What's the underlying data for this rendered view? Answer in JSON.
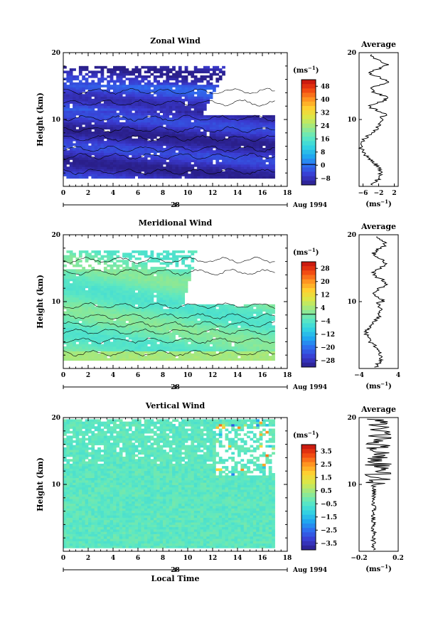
{
  "chart_data": [
    {
      "type": "heatmap",
      "title": "Zonal Wind",
      "ylabel": "Height (km)",
      "ylim": [
        0,
        20
      ],
      "yticks": [
        "10",
        "20"
      ],
      "xlim": [
        0,
        18
      ],
      "xticks": [
        "0",
        "2",
        "4",
        "6",
        "8",
        "10",
        "12",
        "14",
        "16",
        "18"
      ],
      "date_label": "28",
      "date_suffix": "Aug 1994",
      "colorbar": {
        "unit": "(ms",
        "unit_exp": "−1",
        "unit_close": ")",
        "ticks": [
          "48",
          "40",
          "32",
          "24",
          "16",
          "8",
          "0",
          "−8"
        ],
        "range": [
          -12,
          52
        ]
      },
      "data_extent": {
        "x": [
          0,
          17
        ],
        "y": [
          1.2,
          18.8
        ]
      },
      "average": {
        "title": "Average",
        "xticks": [
          "−6",
          "−2",
          "2"
        ],
        "xlabel": "(ms",
        "xlabel_exp": "−1",
        "xlabel_close": ")",
        "xlim": [
          -7,
          3
        ],
        "yticks": [
          "10",
          "20"
        ]
      },
      "legend": "none",
      "grid": false
    },
    {
      "type": "heatmap",
      "title": "Meridional Wind",
      "ylabel": "Height (km)",
      "ylim": [
        0,
        20
      ],
      "yticks": [
        "10",
        "20"
      ],
      "xlim": [
        0,
        18
      ],
      "xticks": [
        "0",
        "2",
        "4",
        "6",
        "8",
        "10",
        "12",
        "14",
        "16",
        "18"
      ],
      "date_label": "28",
      "date_suffix": "Aug 1994",
      "colorbar": {
        "unit": "(ms",
        "unit_exp": "−1",
        "unit_close": ")",
        "ticks": [
          "28",
          "20",
          "12",
          "4",
          "−4",
          "−12",
          "−20",
          "−28"
        ],
        "range": [
          -32,
          32
        ]
      },
      "data_extent": {
        "x": [
          0,
          17
        ],
        "y": [
          1.2,
          18.8
        ]
      },
      "average": {
        "title": "Average",
        "xticks": [
          "−4",
          "4"
        ],
        "xlabel": "(ms",
        "xlabel_exp": "−1",
        "xlabel_close": ")",
        "xlim": [
          -4,
          4
        ],
        "yticks": [
          "10",
          "20"
        ]
      },
      "legend": "none",
      "grid": false
    },
    {
      "type": "heatmap",
      "title": "Vertical Wind",
      "ylabel": "Height (km)",
      "xlabel": "Local Time",
      "ylim": [
        0,
        20
      ],
      "yticks": [
        "10",
        "20"
      ],
      "xlim": [
        0,
        18
      ],
      "xticks": [
        "0",
        "2",
        "4",
        "6",
        "8",
        "10",
        "12",
        "14",
        "16",
        "18"
      ],
      "date_label": "28",
      "date_suffix": "Aug 1994",
      "colorbar": {
        "unit": "(ms",
        "unit_exp": "−1",
        "unit_close": ")",
        "ticks": [
          "3.5",
          "2.5",
          "1.5",
          "0.5",
          "−0.5",
          "−1.5",
          "−2.5",
          "−3.5"
        ],
        "range": [
          -4,
          4
        ]
      },
      "data_extent": {
        "x": [
          0,
          17
        ],
        "y": [
          0.5,
          19.5
        ]
      },
      "average": {
        "title": "Average",
        "xticks": [
          "−0.2",
          "0.2"
        ],
        "xlabel": "(ms",
        "xlabel_exp": "−1",
        "xlabel_close": ")",
        "xlim": [
          -0.2,
          0.2
        ],
        "yticks": [
          "10",
          "20"
        ]
      },
      "legend": "none",
      "grid": false
    }
  ],
  "colors": {
    "scale": [
      "#2a1f8a",
      "#3a3ad0",
      "#2f6bef",
      "#20a8f0",
      "#34d6e0",
      "#5fe8c0",
      "#9be888",
      "#d8e84a",
      "#ffd030",
      "#ff9020",
      "#f04010",
      "#c01010"
    ]
  }
}
